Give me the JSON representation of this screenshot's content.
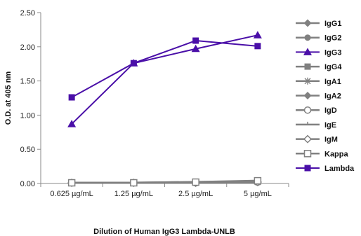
{
  "chart_data": {
    "type": "line",
    "categories": [
      "0.625 µg/mL",
      "1.25 µg/mL",
      "2.5 µg/mL",
      "5 µg/mL"
    ],
    "xlabel": "Dilution of Human IgG3 Lambda-UNLB",
    "ylabel": "O.D. at 405 nm",
    "ylim": [
      0,
      2.5
    ],
    "yticks": [
      "0.00",
      "0.50",
      "1.00",
      "1.50",
      "2.00",
      "2.50"
    ],
    "ytick_values": [
      0,
      0.5,
      1.0,
      1.5,
      2.0,
      2.5
    ],
    "grid": false,
    "legend_position": "right",
    "series": [
      {
        "name": "IgG1",
        "values": [
          0.01,
          0.01,
          0.01,
          0.02
        ],
        "color": "#808080",
        "marker": "diamond"
      },
      {
        "name": "IgG2",
        "values": [
          0.01,
          0.01,
          0.01,
          0.02
        ],
        "color": "#808080",
        "marker": "circle"
      },
      {
        "name": "IgG3",
        "values": [
          0.87,
          1.76,
          1.97,
          2.17
        ],
        "color": "#4a0fa8",
        "marker": "triangle"
      },
      {
        "name": "IgG4",
        "values": [
          0.01,
          0.01,
          0.02,
          0.03
        ],
        "color": "#808080",
        "marker": "square"
      },
      {
        "name": "IgA1",
        "values": [
          0.01,
          0.01,
          0.01,
          0.02
        ],
        "color": "#808080",
        "marker": "star"
      },
      {
        "name": "IgA2",
        "values": [
          0.01,
          0.01,
          0.01,
          0.02
        ],
        "color": "#808080",
        "marker": "diamond"
      },
      {
        "name": "IgD",
        "values": [
          0.01,
          0.01,
          0.01,
          0.02
        ],
        "color": "#808080",
        "marker": "open-circle"
      },
      {
        "name": "IgE",
        "values": [
          0.01,
          0.01,
          0.01,
          0.02
        ],
        "color": "#808080",
        "marker": "dash"
      },
      {
        "name": "IgM",
        "values": [
          0.01,
          0.01,
          0.01,
          0.02
        ],
        "color": "#808080",
        "marker": "open-diamond"
      },
      {
        "name": "Kappa",
        "values": [
          0.01,
          0.01,
          0.02,
          0.04
        ],
        "color": "#808080",
        "marker": "open-square"
      },
      {
        "name": "Lambda",
        "values": [
          1.26,
          1.76,
          2.09,
          2.01
        ],
        "color": "#4a0fa8",
        "marker": "square"
      }
    ]
  }
}
